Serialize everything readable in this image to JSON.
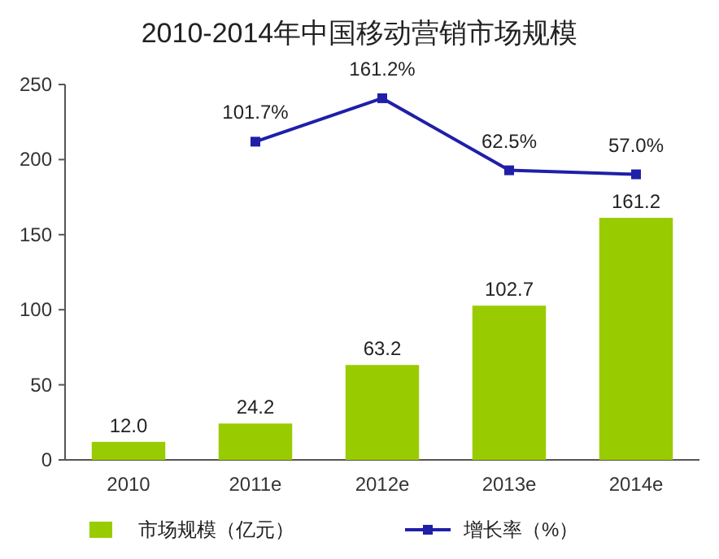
{
  "chart_data": {
    "type": "bar",
    "title": "2010-2014年中国移动营销市场规模",
    "categories": [
      "2010",
      "2011e",
      "2012e",
      "2013e",
      "2014e"
    ],
    "series": [
      {
        "name": "市场规模（亿元）",
        "color": "#99cc00",
        "values": [
          12.0,
          24.2,
          63.2,
          102.7,
          161.2
        ],
        "value_labels": [
          "12.0",
          "24.2",
          "63.2",
          "102.7",
          "161.2"
        ]
      },
      {
        "name": "增长率（%）",
        "type": "line",
        "axis": "y2",
        "color": "#1f1fa8",
        "marker": "square",
        "values": [
          null,
          101.7,
          161.2,
          62.5,
          57.0
        ],
        "value_labels": [
          null,
          "101.7%",
          "161.2%",
          "62.5%",
          "57.0%"
        ]
      }
    ],
    "ylim": [
      0,
      250
    ],
    "yticks": [
      0,
      50,
      100,
      150,
      200,
      250
    ],
    "y2lim": [
      -334,
      180
    ],
    "tick_labels": "xy",
    "grid": false,
    "legend": "bottom"
  }
}
